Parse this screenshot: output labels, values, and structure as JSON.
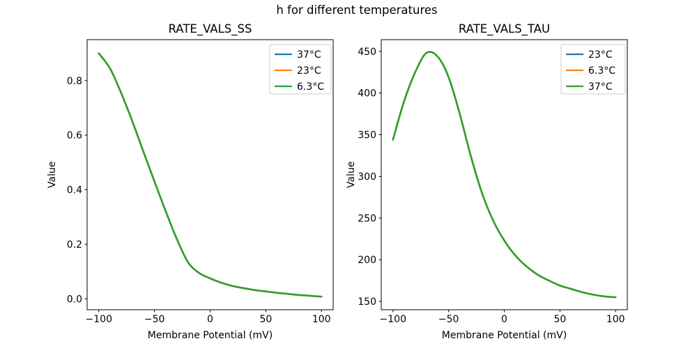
{
  "figure": {
    "suptitle": "h for different temperatures",
    "background": "#ffffff",
    "text_color": "#000000",
    "legend_border_color": "#cccccc"
  },
  "chart_data": [
    {
      "type": "line",
      "title": "RATE_VALS_SS",
      "xlabel": "Membrane Potential (mV)",
      "ylabel": "Value",
      "grid": false,
      "legend_position": "upper right",
      "xlim": [
        -110.5,
        110.5
      ],
      "ylim": [
        -0.04,
        0.95
      ],
      "xticks": {
        "values": [
          -100,
          -50,
          0,
          50,
          100
        ],
        "labels": [
          "−100",
          "−50",
          "0",
          "50",
          "100"
        ]
      },
      "yticks": {
        "values": [
          0.0,
          0.2,
          0.4,
          0.6,
          0.8
        ],
        "labels": [
          "0.0",
          "0.2",
          "0.4",
          "0.6",
          "0.8"
        ]
      },
      "x": [
        -100,
        -90,
        -80,
        -70,
        -60,
        -50,
        -40,
        -30,
        -20,
        -10,
        0,
        10,
        20,
        30,
        40,
        50,
        60,
        70,
        80,
        90,
        100
      ],
      "note": "all three temperature curves coincide exactly; only the last-drawn (green) curve is visible",
      "series": [
        {
          "name": "37°C",
          "color": "#1f77b4",
          "values": [
            0.9,
            0.845,
            0.755,
            0.652,
            0.54,
            0.43,
            0.322,
            0.22,
            0.135,
            0.095,
            0.075,
            0.059,
            0.047,
            0.039,
            0.032,
            0.027,
            0.022,
            0.018,
            0.014,
            0.011,
            0.008
          ]
        },
        {
          "name": "23°C",
          "color": "#ff7f0e",
          "values": [
            0.9,
            0.845,
            0.755,
            0.652,
            0.54,
            0.43,
            0.322,
            0.22,
            0.135,
            0.095,
            0.075,
            0.059,
            0.047,
            0.039,
            0.032,
            0.027,
            0.022,
            0.018,
            0.014,
            0.011,
            0.008
          ]
        },
        {
          "name": "6.3°C",
          "color": "#2ca02c",
          "values": [
            0.9,
            0.845,
            0.755,
            0.652,
            0.54,
            0.43,
            0.322,
            0.22,
            0.135,
            0.095,
            0.075,
            0.059,
            0.047,
            0.039,
            0.032,
            0.027,
            0.022,
            0.018,
            0.014,
            0.011,
            0.008
          ]
        }
      ]
    },
    {
      "type": "line",
      "title": "RATE_VALS_TAU",
      "xlabel": "Membrane Potential (mV)",
      "ylabel": "Value",
      "grid": false,
      "legend_position": "upper right",
      "xlim": [
        -110.5,
        110.5
      ],
      "ylim": [
        140,
        464
      ],
      "xticks": {
        "values": [
          -100,
          -50,
          0,
          50,
          100
        ],
        "labels": [
          "−100",
          "−50",
          "0",
          "50",
          "100"
        ]
      },
      "yticks": {
        "values": [
          150,
          200,
          250,
          300,
          350,
          400,
          450
        ],
        "labels": [
          "150",
          "200",
          "250",
          "300",
          "350",
          "400",
          "450"
        ]
      },
      "x": [
        -100,
        -90,
        -80,
        -70,
        -60,
        -50,
        -40,
        -30,
        -20,
        -10,
        0,
        10,
        20,
        30,
        40,
        50,
        60,
        70,
        80,
        90,
        100
      ],
      "note": "all three temperature curves coincide exactly; only the last-drawn (green) curve is visible",
      "series": [
        {
          "name": "23°C",
          "color": "#1f77b4",
          "values": [
            344,
            390,
            425,
            448,
            444,
            419,
            375,
            324,
            280,
            247,
            223,
            205,
            192,
            182,
            175,
            169,
            165,
            161,
            158,
            156,
            155
          ]
        },
        {
          "name": "6.3°C",
          "color": "#ff7f0e",
          "values": [
            344,
            390,
            425,
            448,
            444,
            419,
            375,
            324,
            280,
            247,
            223,
            205,
            192,
            182,
            175,
            169,
            165,
            161,
            158,
            156,
            155
          ]
        },
        {
          "name": "37°C",
          "color": "#2ca02c",
          "values": [
            344,
            390,
            425,
            448,
            444,
            419,
            375,
            324,
            280,
            247,
            223,
            205,
            192,
            182,
            175,
            169,
            165,
            161,
            158,
            156,
            155
          ]
        }
      ]
    }
  ]
}
